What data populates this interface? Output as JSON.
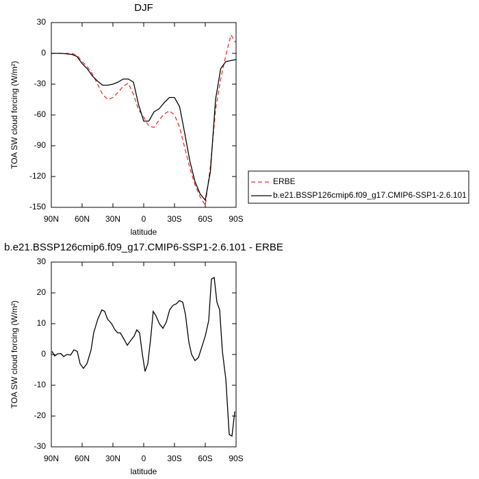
{
  "chart_data": [
    {
      "type": "line",
      "title": "DJF",
      "xlabel": "latitude",
      "ylabel": "TOA SW cloud forcing (W/m²)",
      "x": [
        90,
        80,
        70,
        65,
        60,
        55,
        50,
        45,
        40,
        35,
        30,
        25,
        20,
        15,
        10,
        5,
        0,
        -5,
        -10,
        -15,
        -20,
        -25,
        -30,
        -35,
        -40,
        -45,
        -50,
        -55,
        -60,
        -65,
        -70,
        -75,
        -80,
        -85,
        -90
      ],
      "series": [
        {
          "name": "ERBE",
          "color": "#e8302a",
          "dash": true,
          "values": [
            0,
            0,
            0,
            -2,
            -8,
            -13,
            -20,
            -30,
            -40,
            -45,
            -43,
            -38,
            -32,
            -29,
            -40,
            -55,
            -62,
            -71,
            -72,
            -65,
            -59,
            -56,
            -60,
            -72,
            -92,
            -112,
            -128,
            -140,
            -148,
            -110,
            -55,
            -25,
            -2,
            18,
            10
          ]
        },
        {
          "name": "b.e21.BSSP126cmip6.f09_g17.CMIP6-SSP1-2.6.101",
          "color": "#000000",
          "dash": false,
          "values": [
            0,
            0,
            -1,
            -3,
            -10,
            -15,
            -22,
            -27,
            -31,
            -31,
            -30,
            -28,
            -25,
            -25,
            -28,
            -50,
            -66,
            -66,
            -57,
            -54,
            -48,
            -43,
            -43,
            -52,
            -78,
            -105,
            -125,
            -137,
            -143,
            -115,
            -45,
            -15,
            -8,
            -7,
            -6
          ]
        }
      ],
      "xlim": [
        90,
        -90
      ],
      "xticks": [
        {
          "value": 90,
          "label": "90N"
        },
        {
          "value": 60,
          "label": "60N"
        },
        {
          "value": 30,
          "label": "30N"
        },
        0,
        {
          "value": -30,
          "label": "30S"
        },
        {
          "value": -60,
          "label": "60S"
        },
        {
          "value": -90,
          "label": "90S"
        }
      ],
      "ylim": [
        -150,
        30
      ],
      "yticks": [
        -150,
        -120,
        -90,
        -60,
        -30,
        0,
        30
      ],
      "legend": "right"
    },
    {
      "type": "line",
      "title": "b.e21.BSSP126cmip6.f09_g17.CMIP6-SSP1-2.6.101 - ERBE",
      "xlabel": "latitude",
      "ylabel": "TOA SW cloud forcing (W/m²)",
      "x": [
        89.3,
        86.7,
        84,
        80.7,
        78,
        74.7,
        71.3,
        68,
        64.7,
        62,
        58.7,
        55.3,
        51.3,
        48.7,
        44.7,
        40.7,
        38,
        35.3,
        31.3,
        28,
        25.3,
        22.7,
        19.3,
        16,
        12.7,
        9.3,
        6.7,
        4,
        1.3,
        -1.3,
        -4,
        -6.7,
        -9.3,
        -12,
        -15.3,
        -18.7,
        -22,
        -25.3,
        -28.7,
        -32,
        -34.7,
        -38,
        -40.7,
        -44,
        -46.7,
        -50,
        -53.3,
        -56.7,
        -60,
        -63.3,
        -66,
        -68.7,
        -71.3,
        -74,
        -76.7,
        -80,
        -83.3,
        -86,
        -88.7
      ],
      "values": [
        1,
        -0.5,
        0.2,
        0.3,
        -0.7,
        0,
        -0.2,
        1.5,
        1,
        -3,
        -4.5,
        -3,
        1.5,
        7,
        11.5,
        14.5,
        14,
        11.5,
        10,
        8,
        7,
        7,
        5,
        3,
        4.5,
        6,
        8,
        7,
        0,
        -5.5,
        -3,
        5,
        14,
        12.5,
        10,
        8.5,
        10.5,
        14.5,
        16,
        16.5,
        17.5,
        17,
        13,
        4,
        0,
        -2,
        -1,
        2.5,
        6,
        11,
        24.5,
        25,
        17,
        14.5,
        1,
        -8,
        -26,
        -26.5,
        -18.5
      ],
      "color": "#000000",
      "xlim": [
        90,
        -90
      ],
      "xticks": [
        {
          "value": 90,
          "label": "90N"
        },
        {
          "value": 60,
          "label": "60N"
        },
        {
          "value": 30,
          "label": "30N"
        },
        0,
        {
          "value": -30,
          "label": "30S"
        },
        {
          "value": -60,
          "label": "60S"
        },
        {
          "value": -90,
          "label": "90S"
        }
      ],
      "ylim": [
        -30,
        30
      ],
      "yticks": [
        -30,
        -20,
        -10,
        0,
        10,
        20,
        30
      ]
    }
  ]
}
